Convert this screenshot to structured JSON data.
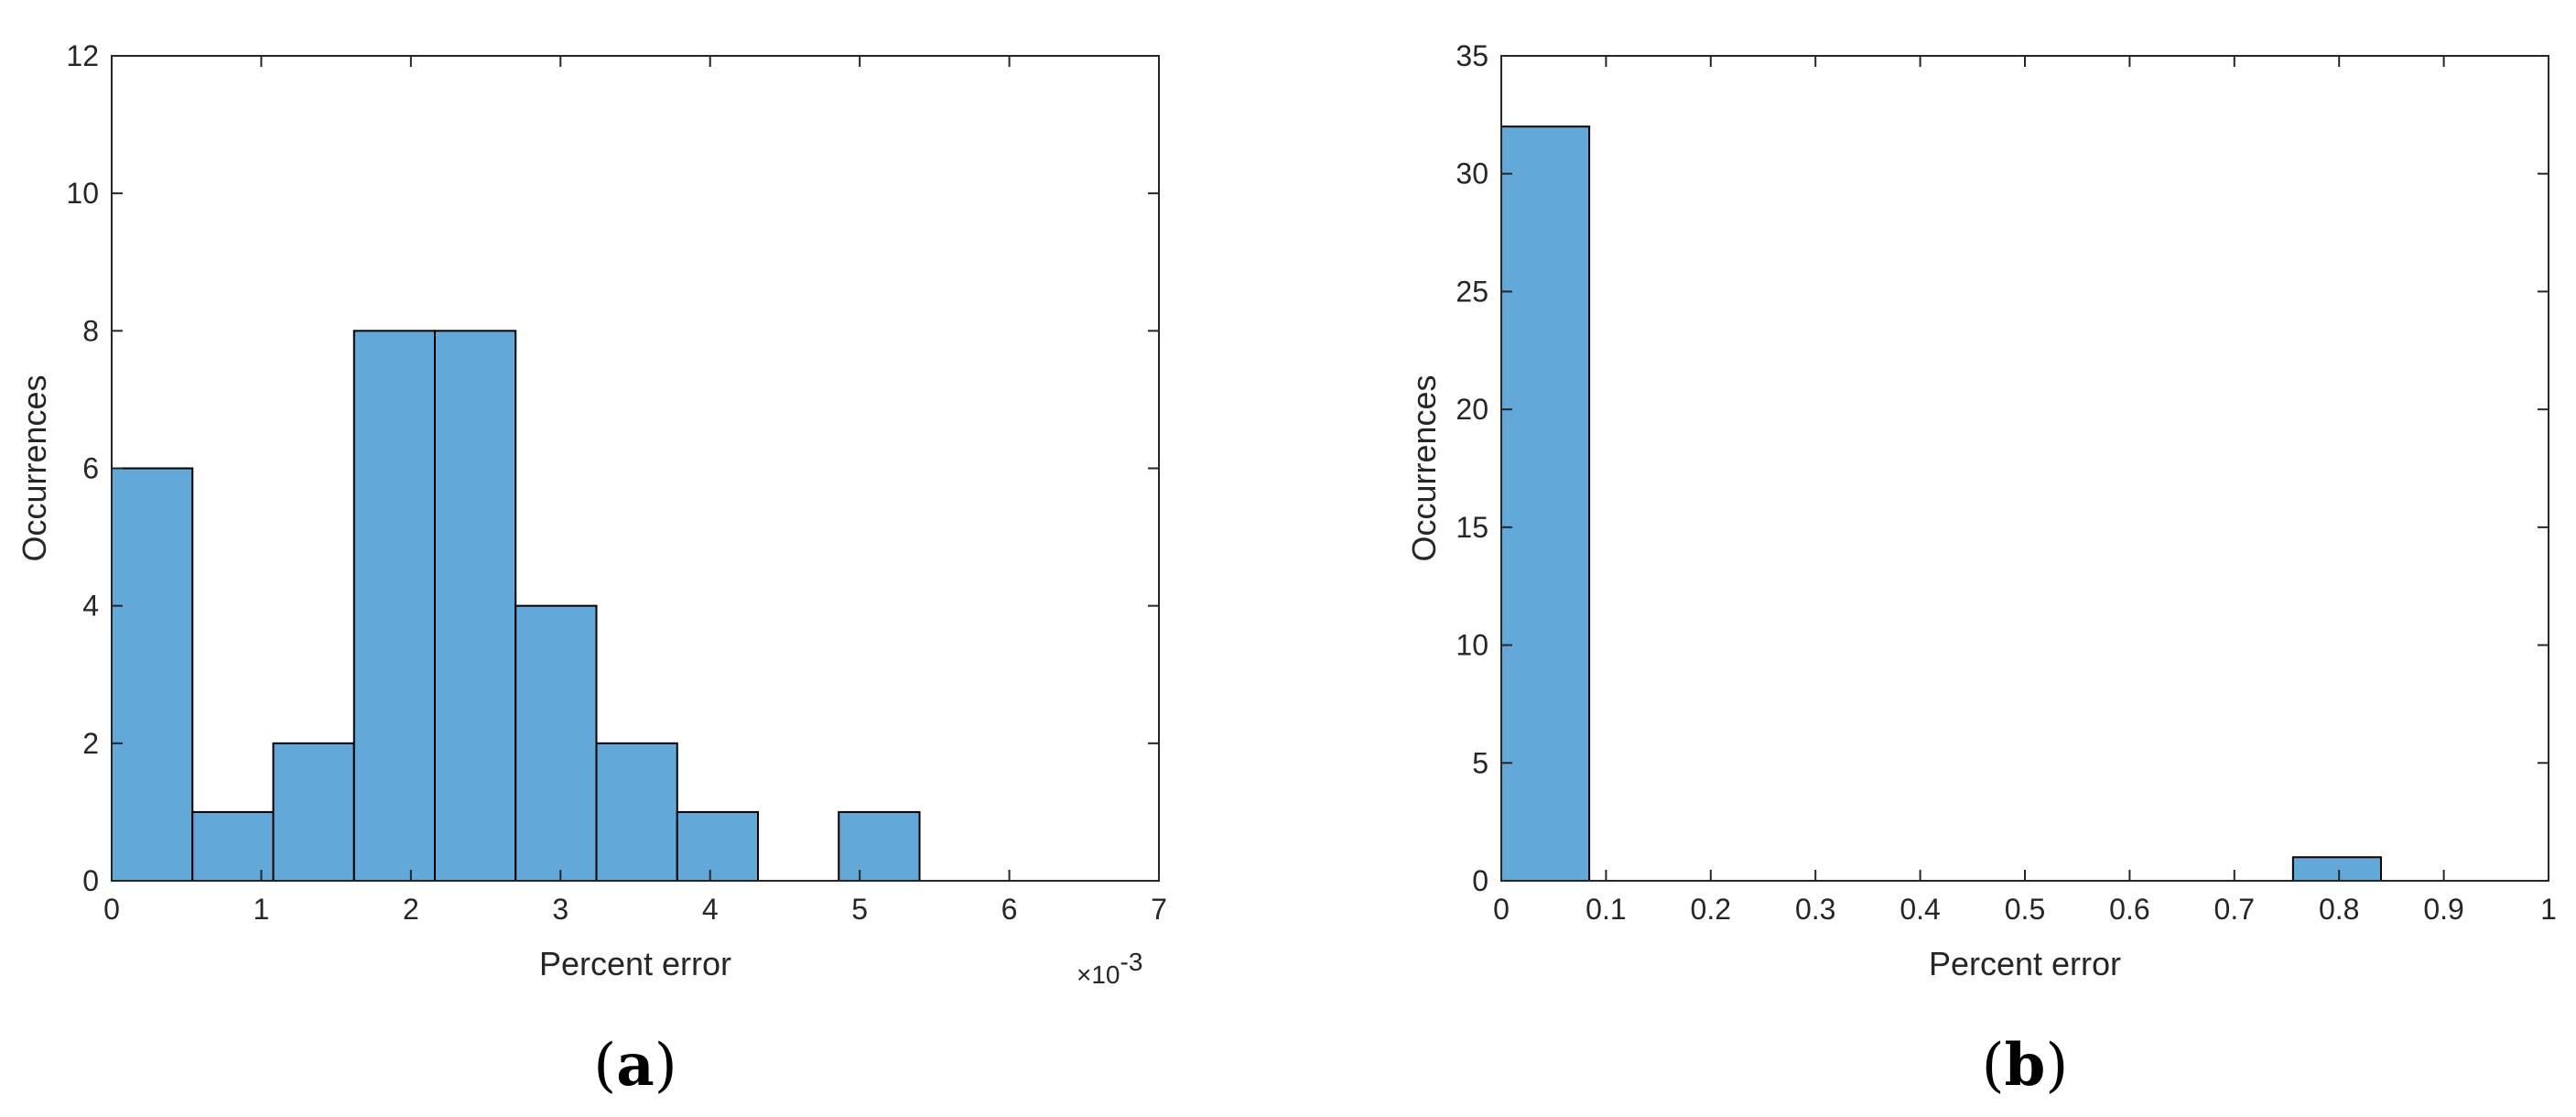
{
  "chart_data": [
    {
      "type": "bar",
      "panel_label": "a",
      "xlabel": "Percent error",
      "ylabel": "Occurrences",
      "x_multiplier_label": "×10",
      "x_multiplier_exponent": "-3",
      "xlim": [
        0,
        7
      ],
      "ylim": [
        0,
        12
      ],
      "xticks": [
        "0",
        "1",
        "2",
        "3",
        "4",
        "5",
        "6",
        "7"
      ],
      "yticks": [
        "0",
        "2",
        "4",
        "6",
        "8",
        "10",
        "12"
      ],
      "bin_edges": [
        0,
        0.54,
        1.08,
        1.62,
        2.16,
        2.7,
        3.24,
        3.78,
        4.32,
        4.86,
        5.4
      ],
      "values": [
        6,
        1,
        2,
        8,
        8,
        4,
        2,
        1,
        0,
        1
      ],
      "bar_color": "#62a8d8",
      "edge_color": "#000000",
      "grid": false
    },
    {
      "type": "bar",
      "panel_label": "b",
      "xlabel": "Percent error",
      "ylabel": "Occurrences",
      "xlim": [
        0,
        1
      ],
      "ylim": [
        0,
        35
      ],
      "xticks": [
        "0",
        "0.1",
        "0.2",
        "0.3",
        "0.4",
        "0.5",
        "0.6",
        "0.7",
        "0.8",
        "0.9",
        "1"
      ],
      "yticks": [
        "0",
        "5",
        "10",
        "15",
        "20",
        "25",
        "30",
        "35"
      ],
      "bin_edges": [
        0,
        0.084,
        0.168,
        0.252,
        0.336,
        0.42,
        0.504,
        0.588,
        0.672,
        0.756,
        0.84
      ],
      "values": [
        32,
        0,
        0,
        0,
        0,
        0,
        0,
        0,
        0,
        1
      ],
      "bar_color": "#62a8d8",
      "edge_color": "#000000",
      "grid": false
    }
  ]
}
